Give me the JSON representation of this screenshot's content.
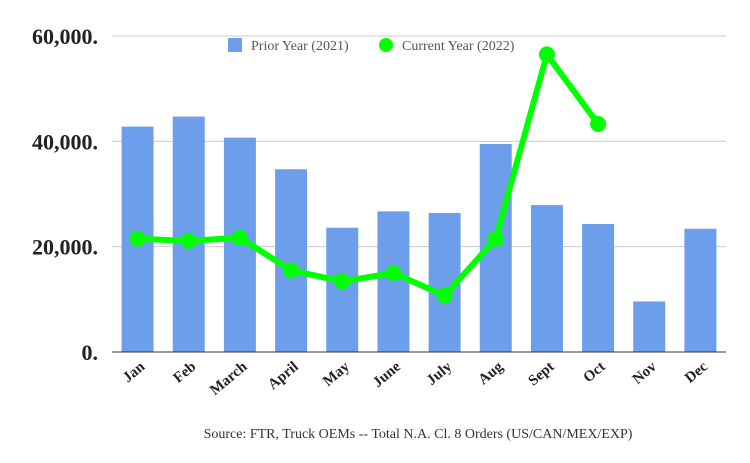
{
  "chart_data": {
    "type": "bar",
    "categories": [
      "Jan",
      "Feb",
      "March",
      "April",
      "May",
      "June",
      "July",
      "Aug",
      "Sept",
      "Oct",
      "Nov",
      "Dec"
    ],
    "series": [
      {
        "name": "Prior Year (2021)",
        "type": "bar",
        "color": "#6d9eeb",
        "values": [
          42800,
          44700,
          40700,
          34700,
          23600,
          26700,
          26400,
          39500,
          27900,
          24300,
          9600,
          23400
        ]
      },
      {
        "name": "Current Year (2022)",
        "type": "line",
        "color": "#00ff00",
        "values": [
          21500,
          21100,
          21700,
          15500,
          13400,
          15000,
          10700,
          21500,
          56500,
          43300,
          null,
          null
        ]
      }
    ],
    "ylim": [
      0,
      60000
    ],
    "yticks": [
      0,
      20000,
      40000,
      60000
    ],
    "ytick_labels": [
      "0.",
      "20,000.",
      "40,000.",
      "60,000."
    ],
    "grid": true,
    "legend_position": "top",
    "source": "Source: FTR, Truck OEMs -- Total N.A. Cl. 8 Orders (US/CAN/MEX/EXP)"
  }
}
